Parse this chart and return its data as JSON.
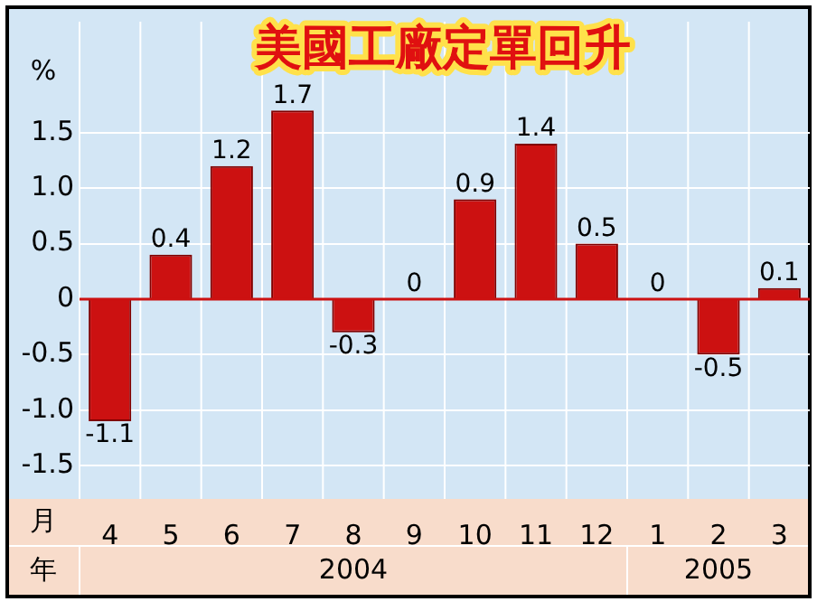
{
  "chart_data": {
    "type": "bar",
    "title": "美國工廠定單回升",
    "ylabel": "%",
    "xlabel": "月",
    "categories": [
      "4",
      "5",
      "6",
      "7",
      "8",
      "9",
      "10",
      "11",
      "12",
      "1",
      "2",
      "3"
    ],
    "values": [
      -1.1,
      0.4,
      1.2,
      1.7,
      -0.3,
      0,
      0.9,
      1.4,
      0.5,
      0,
      -0.5,
      0.1
    ],
    "color": "#cc1111",
    "data_labels": true,
    "ylim": [
      -1.8,
      2.5
    ],
    "yticks": [
      {
        "value": -1.5,
        "label": "-1.5"
      },
      {
        "value": -1,
        "label": "-1.0"
      },
      {
        "value": -0.5,
        "label": "-0.5"
      },
      0,
      {
        "value": 0.5,
        "label": "0.5"
      },
      {
        "value": 1,
        "label": "1.0"
      },
      {
        "value": 1.5,
        "label": "1.5"
      }
    ],
    "grid": true,
    "ref_lines": [
      {
        "axis": "y",
        "value": 0,
        "color": "#cc1111"
      }
    ],
    "annotations": [
      "年",
      "2004",
      "2005"
    ]
  }
}
